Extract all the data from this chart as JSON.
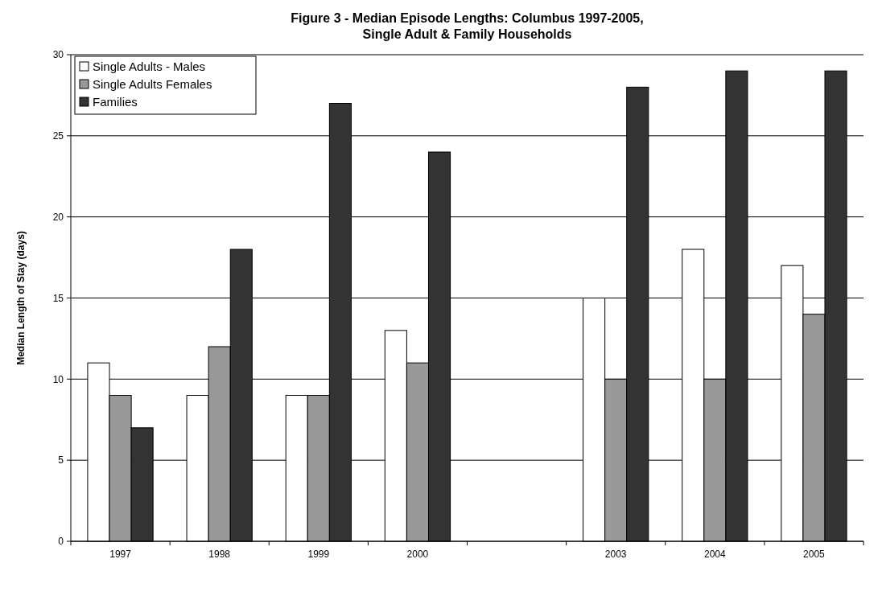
{
  "chart_data": {
    "type": "bar",
    "title": "Figure 3 - Median Episode Lengths: Columbus 1997-2005,\nSingle Adult & Family Households",
    "ylabel": "Median Length of Stay (days)",
    "categories": [
      "1997",
      "1998",
      "1999",
      "2000",
      null,
      "2003",
      "2004",
      "2005"
    ],
    "series": [
      {
        "name": "Single Adults - Males",
        "color": "#ffffff",
        "values": [
          11,
          9,
          9,
          13,
          null,
          15,
          18,
          17
        ]
      },
      {
        "name": "Single Adults Females",
        "color": "#999999",
        "values": [
          9,
          12,
          9,
          11,
          null,
          10,
          10,
          14
        ]
      },
      {
        "name": "Families",
        "color": "#333333",
        "values": [
          7,
          18,
          27,
          24,
          null,
          28,
          29,
          29
        ]
      }
    ],
    "ylim": [
      0,
      30
    ],
    "yticks": [
      0,
      5,
      10,
      15,
      20,
      25,
      30
    ],
    "grid": "y",
    "legend": "top left"
  }
}
